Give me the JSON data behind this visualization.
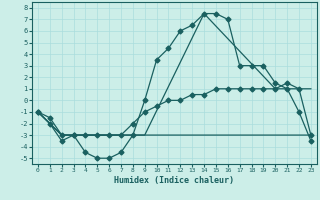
{
  "xlabel": "Humidex (Indice chaleur)",
  "bg_color": "#cceee8",
  "line_color": "#1a6060",
  "grid_color": "#aadddd",
  "xlim": [
    -0.5,
    23.5
  ],
  "ylim": [
    -5.5,
    8.5
  ],
  "xticks": [
    0,
    1,
    2,
    3,
    4,
    5,
    6,
    7,
    8,
    9,
    10,
    11,
    12,
    13,
    14,
    15,
    16,
    17,
    18,
    19,
    20,
    21,
    22,
    23
  ],
  "yticks": [
    -5,
    -4,
    -3,
    -2,
    -1,
    0,
    1,
    2,
    3,
    4,
    5,
    6,
    7,
    8
  ],
  "line1_x": [
    0,
    1,
    2,
    3,
    4,
    5,
    6,
    7,
    8,
    9,
    10,
    11,
    12,
    13,
    14,
    15,
    16,
    17,
    18,
    19,
    20,
    21,
    22,
    23
  ],
  "line1_y": [
    -1,
    -2,
    -3.5,
    -3,
    -4.5,
    -5,
    -5,
    -4.5,
    -3,
    0,
    3.5,
    4.5,
    6,
    6.5,
    7.5,
    7.5,
    7,
    3,
    3,
    3,
    1.5,
    1,
    -1,
    -3.5
  ],
  "line2_x": [
    0,
    1,
    2,
    3,
    4,
    5,
    6,
    7,
    8,
    9,
    10,
    11,
    12,
    13,
    14,
    15,
    16,
    17,
    18,
    19,
    20,
    21,
    22,
    23
  ],
  "line2_y": [
    -1,
    -1.5,
    -3,
    -3,
    -3,
    -3,
    -3,
    -3,
    -2,
    -1,
    -0.5,
    0,
    0,
    0.5,
    0.5,
    1,
    1,
    1,
    1,
    1,
    1,
    1.5,
    1,
    -3
  ],
  "line3_x": [
    0,
    2,
    9,
    14,
    20,
    23
  ],
  "line3_y": [
    -1,
    -3,
    -3,
    7.5,
    1,
    1
  ],
  "line4_x": [
    0,
    2,
    20,
    23
  ],
  "line4_y": [
    -1,
    -3,
    -3,
    -3
  ],
  "marker": "D",
  "marker_size": 2.5,
  "linewidth": 0.9
}
